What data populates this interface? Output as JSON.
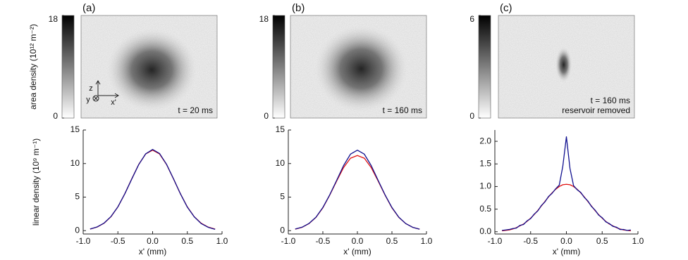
{
  "chart_data": [
    {
      "type": "image",
      "panel_label": "(a)",
      "ylabel": "area density (10¹² m⁻²)",
      "clim": [
        0,
        18
      ],
      "cticks": [
        0,
        18
      ],
      "annotations": [
        "t = 20 ms"
      ],
      "axis_labels": [
        "z",
        "y",
        "x'"
      ]
    },
    {
      "type": "image",
      "panel_label": "(b)",
      "clim": [
        0,
        18
      ],
      "cticks": [
        0,
        18
      ],
      "annotations": [
        "t = 160 ms"
      ]
    },
    {
      "type": "image",
      "panel_label": "(c)",
      "clim": [
        0,
        6
      ],
      "cticks": [
        0,
        6
      ],
      "annotations": [
        "t = 160 ms",
        "reservoir removed"
      ]
    },
    {
      "type": "line",
      "ylabel": "linear density (10⁹ m⁻¹)",
      "xlabel": "x' (mm)",
      "x": [
        -0.9,
        -0.8,
        -0.7,
        -0.6,
        -0.5,
        -0.4,
        -0.3,
        -0.2,
        -0.1,
        0,
        0.1,
        0.2,
        0.3,
        0.4,
        0.5,
        0.6,
        0.7,
        0.8,
        0.9
      ],
      "xlim": [
        -1,
        1
      ],
      "xticks": [
        {
          "value": -1,
          "label": "-1.0"
        },
        -0.5,
        {
          "value": 0,
          "label": "0.0"
        },
        0.5,
        {
          "value": 1,
          "label": "1.0"
        }
      ],
      "ylim": [
        -0.5,
        15
      ],
      "yticks": [
        0,
        5,
        10,
        15
      ],
      "series": [
        {
          "color": "#e01010",
          "values": [
            0.23,
            0.53,
            1.1,
            2.07,
            3.54,
            5.5,
            7.73,
            9.87,
            11.43,
            12,
            11.43,
            9.87,
            7.73,
            5.5,
            3.54,
            2.07,
            1.1,
            0.53,
            0.23
          ]
        },
        {
          "color": "#10108f",
          "values": [
            0.25,
            0.55,
            1.12,
            2.1,
            3.55,
            5.5,
            7.7,
            9.85,
            11.45,
            12.1,
            11.5,
            9.9,
            7.75,
            5.5,
            3.5,
            2.05,
            1.05,
            0.5,
            0.2
          ]
        }
      ]
    },
    {
      "type": "line",
      "xlabel": "x' (mm)",
      "x": [
        -0.9,
        -0.8,
        -0.7,
        -0.6,
        -0.5,
        -0.4,
        -0.3,
        -0.2,
        -0.1,
        0,
        0.1,
        0.2,
        0.3,
        0.4,
        0.5,
        0.6,
        0.7,
        0.8,
        0.9
      ],
      "xlim": [
        -1,
        1
      ],
      "xticks": [
        {
          "value": -1,
          "label": "-1.0"
        },
        -0.5,
        {
          "value": 0,
          "label": "0.0"
        },
        0.5,
        {
          "value": 1,
          "label": "1.0"
        }
      ],
      "ylim": [
        -0.5,
        15
      ],
      "yticks": [
        0,
        5,
        10,
        15
      ],
      "series": [
        {
          "color": "#e01010",
          "values": [
            0.22,
            0.5,
            1.05,
            1.97,
            3.4,
            5.3,
            7.4,
            9.4,
            10.8,
            11.2,
            10.8,
            9.4,
            7.4,
            5.3,
            3.4,
            1.97,
            1.05,
            0.5,
            0.22
          ]
        },
        {
          "color": "#10108f",
          "values": [
            0.25,
            0.52,
            1.08,
            2.0,
            3.45,
            5.35,
            7.5,
            9.7,
            11.4,
            12.0,
            11.4,
            9.7,
            7.5,
            5.35,
            3.45,
            2.0,
            1.05,
            0.5,
            0.22
          ]
        }
      ]
    },
    {
      "type": "line",
      "xlabel": "x' (mm)",
      "x": [
        -0.9,
        -0.85,
        -0.8,
        -0.75,
        -0.7,
        -0.65,
        -0.6,
        -0.55,
        -0.5,
        -0.45,
        -0.4,
        -0.35,
        -0.3,
        -0.25,
        -0.2,
        -0.15,
        -0.1,
        -0.05,
        0,
        0.05,
        0.1,
        0.15,
        0.2,
        0.25,
        0.3,
        0.35,
        0.4,
        0.45,
        0.5,
        0.55,
        0.6,
        0.65,
        0.7,
        0.75,
        0.8,
        0.85,
        0.9
      ],
      "xlim": [
        -1,
        1
      ],
      "xticks": [
        {
          "value": -1,
          "label": "-1.0"
        },
        -0.5,
        {
          "value": 0,
          "label": "0.0"
        },
        0.5,
        {
          "value": 1,
          "label": "1.0"
        }
      ],
      "ylim": [
        -0.05,
        2.25
      ],
      "yticks": [
        {
          "value": 0,
          "label": "0.0"
        },
        0.5,
        {
          "value": 1,
          "label": "1.0"
        },
        1.5,
        {
          "value": 2,
          "label": "2.0"
        }
      ],
      "series": [
        {
          "color": "#e01010",
          "values": [
            0.02,
            0.03,
            0.04,
            0.06,
            0.09,
            0.13,
            0.17,
            0.23,
            0.3,
            0.38,
            0.47,
            0.57,
            0.67,
            0.77,
            0.86,
            0.94,
            1.0,
            1.04,
            1.05,
            1.04,
            1.0,
            0.94,
            0.86,
            0.77,
            0.67,
            0.57,
            0.47,
            0.38,
            0.3,
            0.23,
            0.17,
            0.13,
            0.09,
            0.06,
            0.04,
            0.03,
            0.02
          ]
        },
        {
          "color": "#10108f",
          "values": [
            0.03,
            0.04,
            0.05,
            0.07,
            0.08,
            0.14,
            0.16,
            0.24,
            0.29,
            0.39,
            0.46,
            0.58,
            0.66,
            0.78,
            0.85,
            0.95,
            1.03,
            1.45,
            2.1,
            1.4,
            1.02,
            0.93,
            0.87,
            0.76,
            0.68,
            0.56,
            0.48,
            0.37,
            0.31,
            0.22,
            0.18,
            0.12,
            0.1,
            0.05,
            0.05,
            0.03,
            0.04
          ]
        }
      ]
    }
  ]
}
